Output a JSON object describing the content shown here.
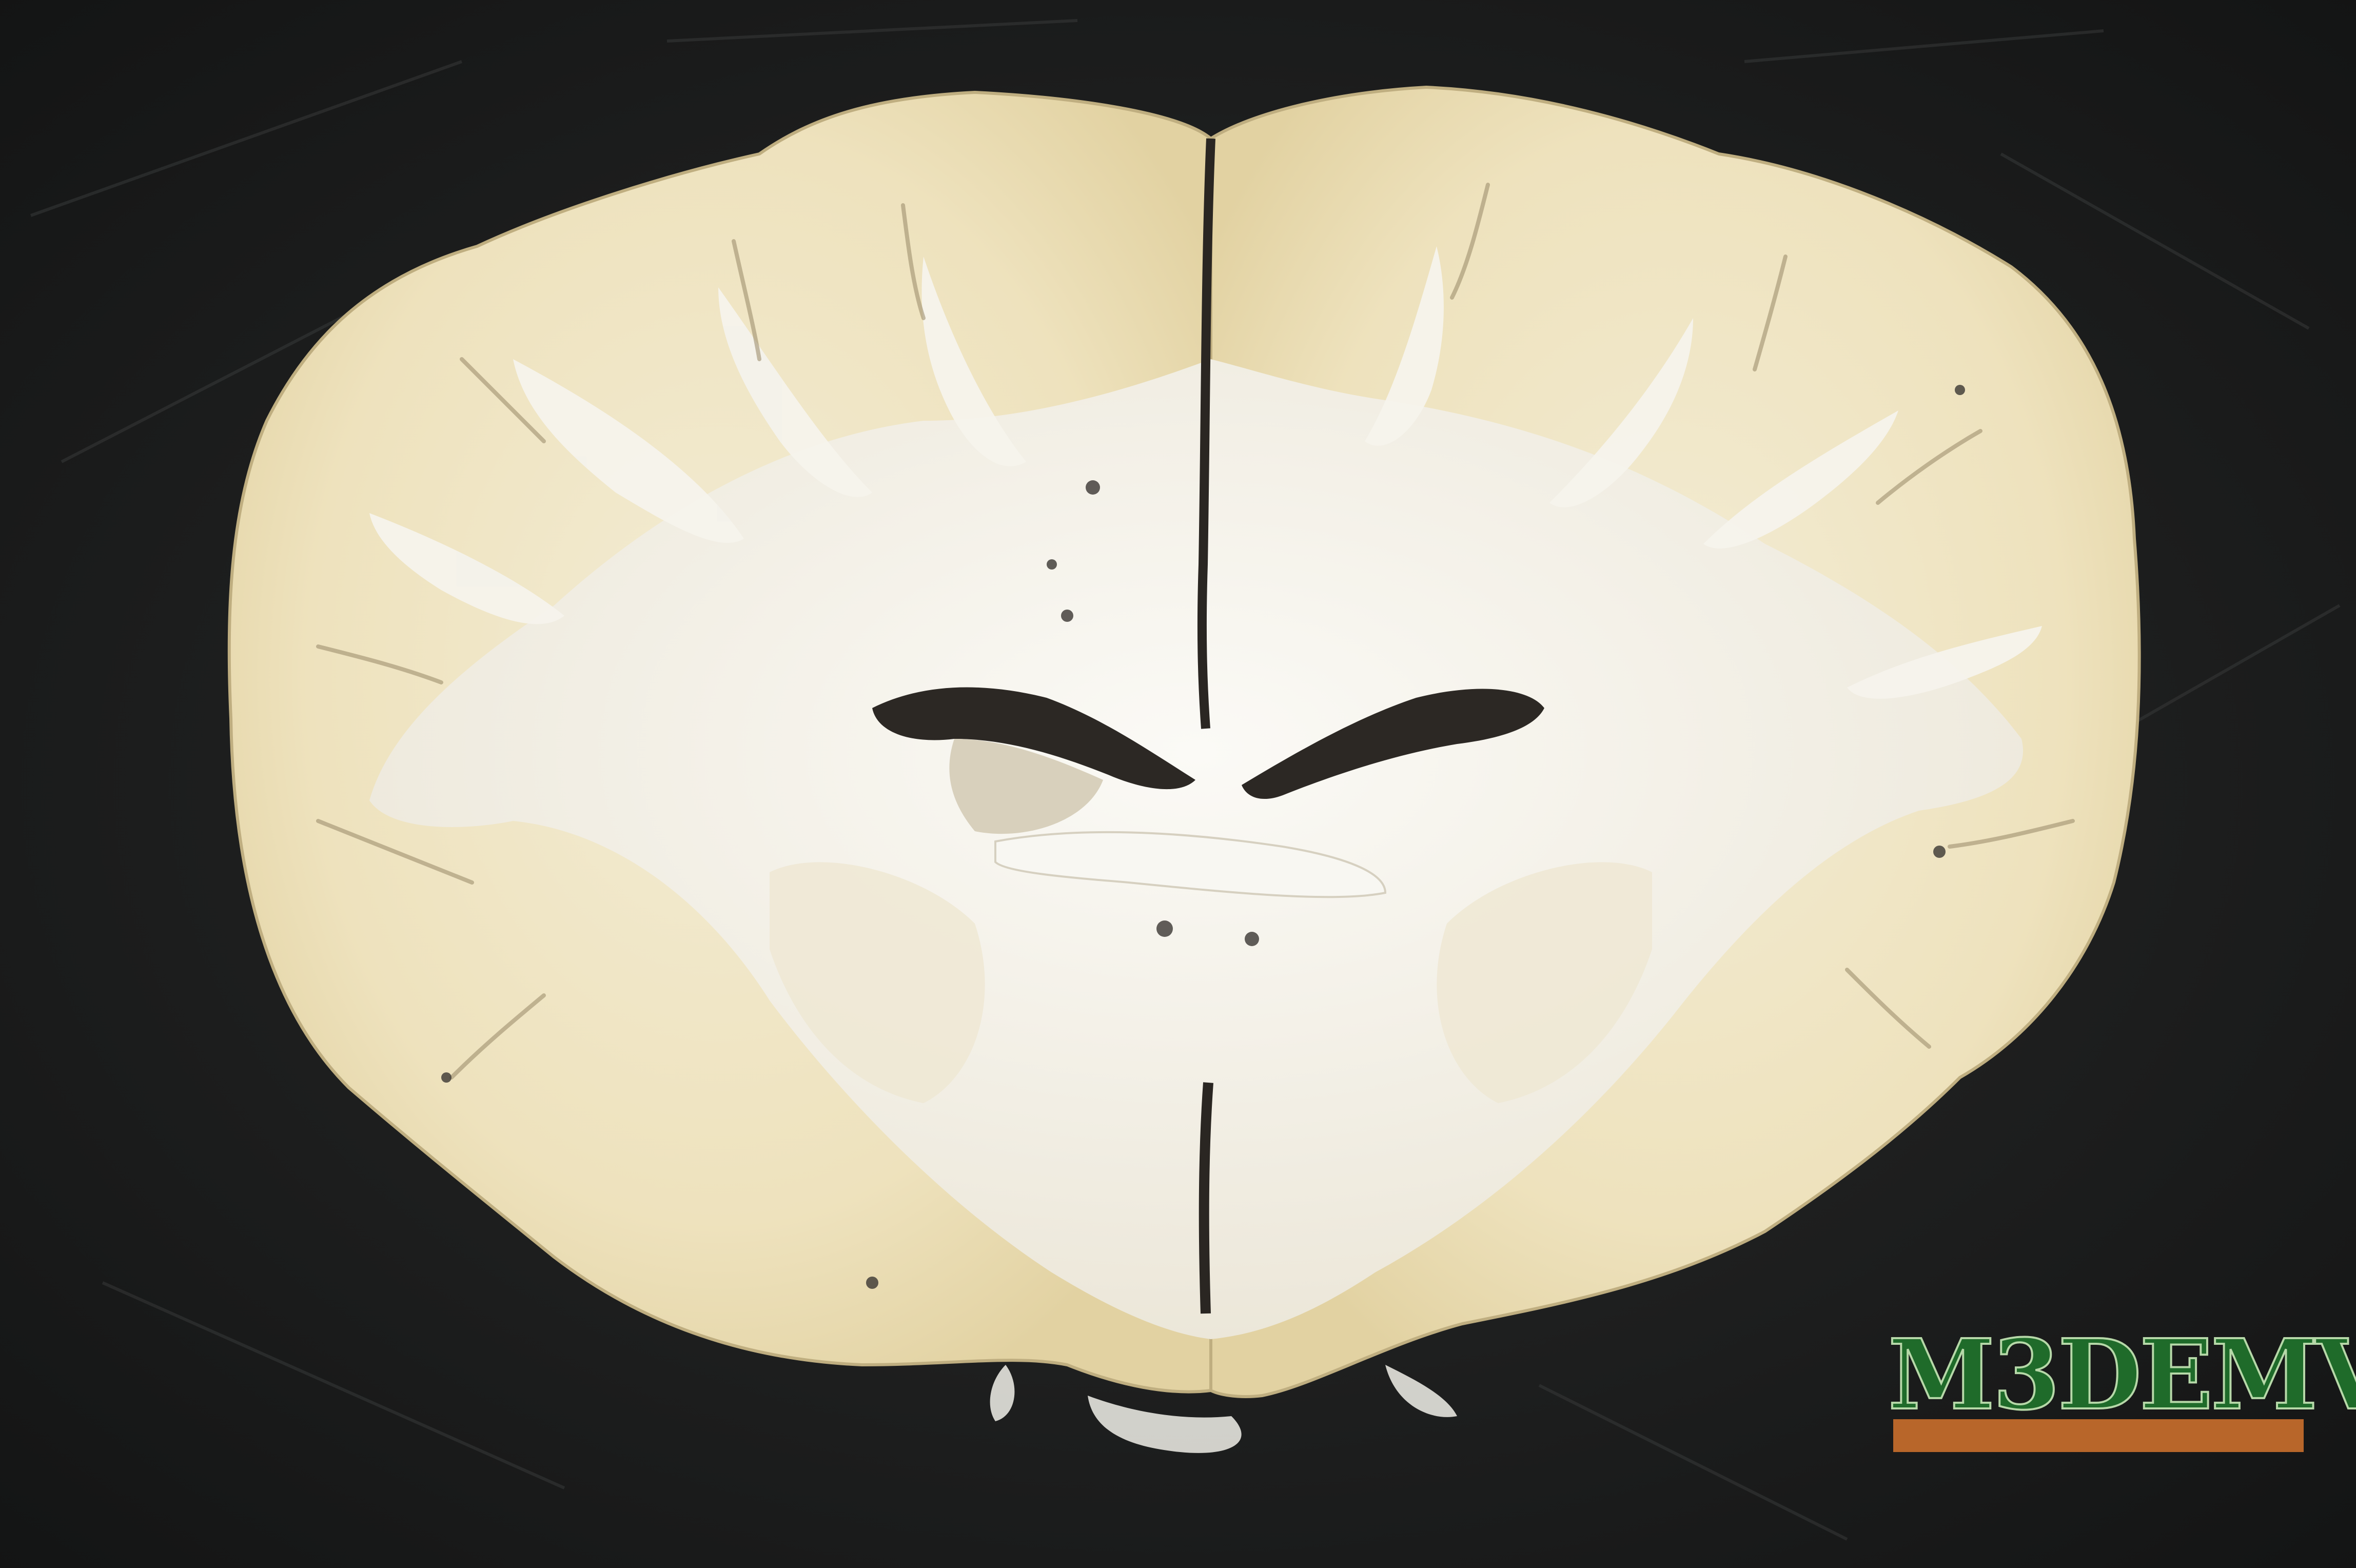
{
  "image": {
    "subject": "coronal-brain-slice",
    "background_color": "#1b1c1c",
    "tissue_grey_matter_color": "#eee4c0",
    "tissue_white_matter_color": "#f4f2ec"
  },
  "watermark": {
    "text": "M3DEMV",
    "text_color": "#1f6b2a",
    "bar_color": "#b8662a"
  }
}
